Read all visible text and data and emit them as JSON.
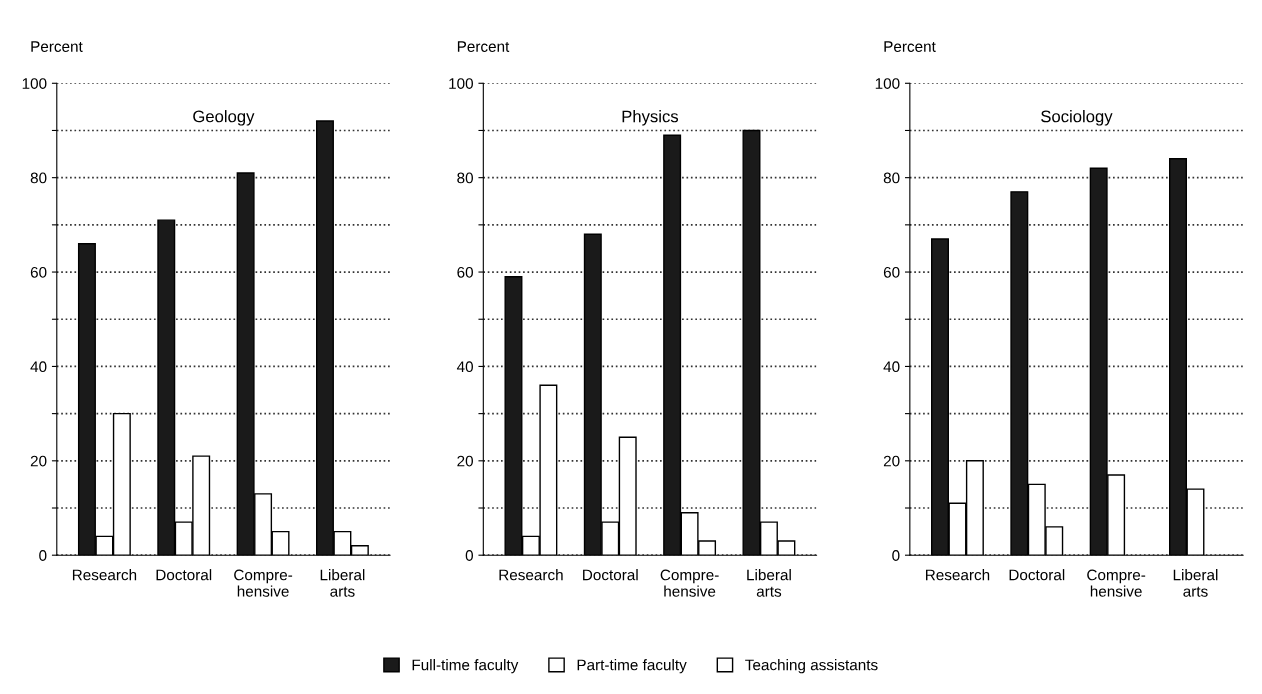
{
  "chart_data": [
    {
      "type": "bar",
      "title": "Geology",
      "ylabel": "Percent",
      "categories": [
        "Research",
        "Doctoral",
        "Compre-\nhensive",
        "Liberal\narts"
      ],
      "ylim": [
        0,
        100
      ],
      "yticks": [
        0,
        {
          "value": 10,
          "label": null
        },
        20,
        {
          "value": 30,
          "label": null
        },
        40,
        {
          "value": 50,
          "label": null
        },
        60,
        {
          "value": 70,
          "label": null
        },
        80,
        {
          "value": 90,
          "label": null
        },
        100
      ],
      "grid": "y",
      "legend": "bottom",
      "series": [
        {
          "name": "Full-time faculty",
          "color": "#1a1a1a",
          "values": [
            66,
            71,
            81,
            92
          ]
        },
        {
          "name": "Part-time faculty",
          "color": "#ffffff",
          "values": [
            4,
            7,
            13,
            5
          ]
        },
        {
          "name": "Teaching assistants",
          "color": "#ffffff",
          "values": [
            30,
            21,
            5,
            2
          ]
        }
      ]
    },
    {
      "type": "bar",
      "title": "Physics",
      "ylabel": "Percent",
      "categories": [
        "Research",
        "Doctoral",
        "Compre-\nhensive",
        "Liberal\narts"
      ],
      "ylim": [
        0,
        100
      ],
      "yticks": [
        0,
        {
          "value": 10,
          "label": null
        },
        20,
        {
          "value": 30,
          "label": null
        },
        40,
        {
          "value": 50,
          "label": null
        },
        60,
        {
          "value": 70,
          "label": null
        },
        80,
        {
          "value": 90,
          "label": null
        },
        100
      ],
      "grid": "y",
      "series": [
        {
          "color": "#1a1a1a",
          "values": [
            59,
            68,
            89,
            90
          ]
        },
        {
          "color": "#ffffff",
          "values": [
            4,
            7,
            9,
            7
          ]
        },
        {
          "color": "#ffffff",
          "values": [
            36,
            25,
            3,
            3
          ]
        }
      ]
    },
    {
      "type": "bar",
      "title": "Sociology",
      "ylabel": "Percent",
      "categories": [
        "Research",
        "Doctoral",
        "Compre-\nhensive",
        "Liberal\narts"
      ],
      "ylim": [
        0,
        100
      ],
      "yticks": [
        0,
        {
          "value": 10,
          "label": null
        },
        20,
        {
          "value": 30,
          "label": null
        },
        40,
        {
          "value": 50,
          "label": null
        },
        60,
        {
          "value": 70,
          "label": null
        },
        80,
        {
          "value": 90,
          "label": null
        },
        100
      ],
      "grid": "y",
      "series": [
        {
          "color": "#1a1a1a",
          "values": [
            67,
            77,
            82,
            84
          ]
        },
        {
          "color": "#ffffff",
          "values": [
            11,
            15,
            17,
            14
          ]
        },
        {
          "color": "#ffffff",
          "values": [
            20,
            6,
            null,
            null
          ]
        }
      ]
    }
  ]
}
